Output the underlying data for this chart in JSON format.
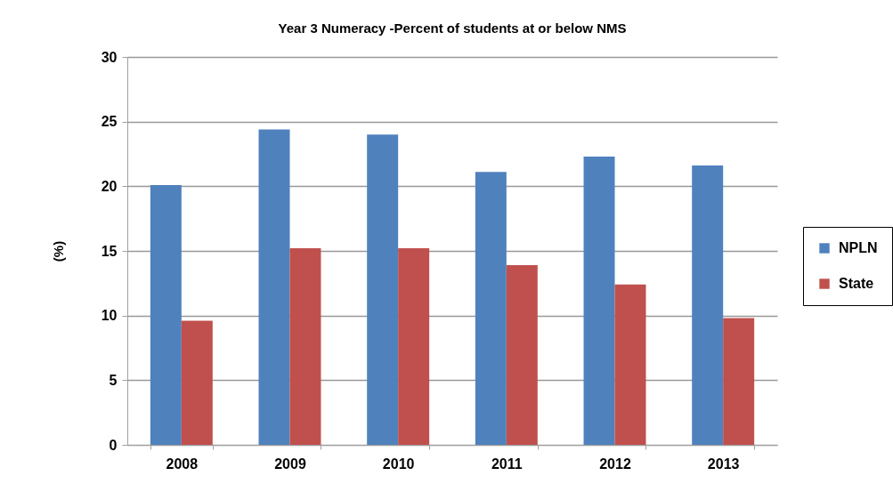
{
  "chart_data": {
    "type": "bar",
    "title": "Year 3 Numeracy -Percent of students  at or below NMS",
    "ylabel": "(%)",
    "categories": [
      "2008",
      "2009",
      "2010",
      "2011",
      "2012",
      "2013"
    ],
    "series": [
      {
        "name": "NPLN",
        "color": "#4f81bd",
        "values": [
          20.1,
          24.4,
          24.0,
          21.1,
          22.3,
          21.6
        ]
      },
      {
        "name": "State",
        "color": "#c0504d",
        "values": [
          9.6,
          15.2,
          15.2,
          13.9,
          12.4,
          9.8
        ]
      }
    ],
    "ylim": [
      0,
      30
    ],
    "yticks": [
      0,
      5,
      10,
      15,
      20,
      25,
      30
    ],
    "grid": "y",
    "legend": "right"
  }
}
